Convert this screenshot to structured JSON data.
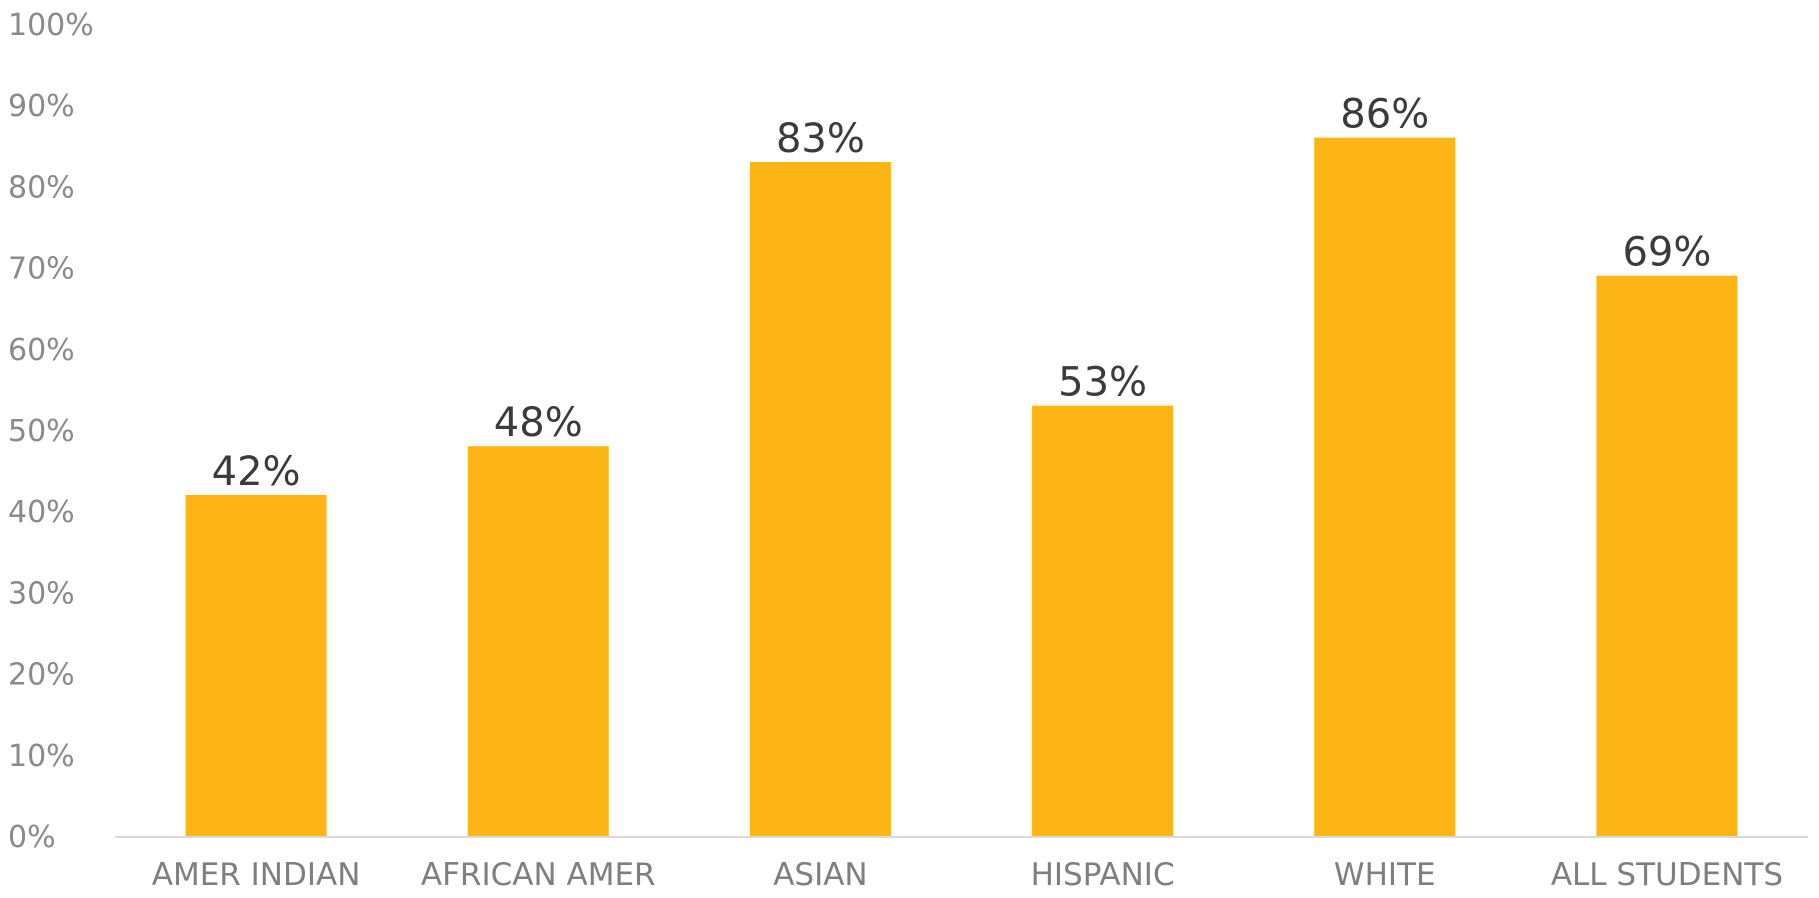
{
  "chart_data": {
    "type": "bar",
    "title": "",
    "xlabel": "",
    "ylabel": "",
    "categories": [
      "AMER INDIAN",
      "AFRICAN AMER",
      "ASIAN",
      "HISPANIC",
      "WHITE",
      "ALL STUDENTS"
    ],
    "values": [
      42,
      48,
      83,
      53,
      86,
      69
    ],
    "data_labels": [
      "42%",
      "48%",
      "83%",
      "53%",
      "86%",
      "69%"
    ],
    "ylim": [
      0,
      100
    ],
    "yticks": [
      0,
      10,
      20,
      30,
      40,
      50,
      60,
      70,
      80,
      90,
      100
    ],
    "ytick_labels": [
      "0%",
      "10%",
      "20%",
      "30%",
      "40%",
      "50%",
      "60%",
      "70%",
      "80%",
      "90%",
      "100%"
    ],
    "grid": false,
    "legend": "none",
    "bar_color": "#FDB515",
    "baseline_color": "#D9D9D9"
  }
}
